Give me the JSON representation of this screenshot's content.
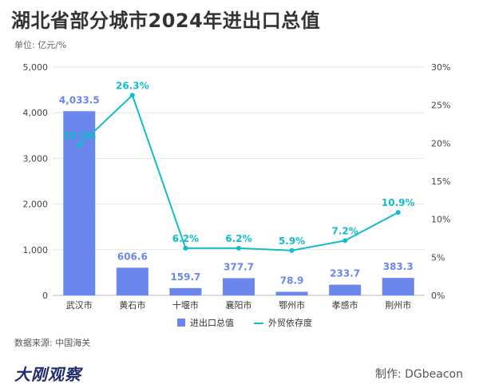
{
  "header": {
    "title": "湖北省部分城市2024年进出口总值",
    "unit": "单位: 亿元/%"
  },
  "footer": {
    "source": "数据来源: 中国海关",
    "brand": "大刚观察",
    "credit": "制作: DGbeacon"
  },
  "colors": {
    "bar": "#6b86ec",
    "line": "#12bccb",
    "axis_text": "#444444",
    "grid": "#e6e6e6"
  },
  "chart_data": {
    "type": "bar",
    "categories": [
      "武汉市",
      "黄石市",
      "十堰市",
      "襄阳市",
      "鄂州市",
      "孝感市",
      "荆州市"
    ],
    "series": [
      {
        "name": "进出口总值",
        "type": "bar",
        "axis": "left",
        "values": [
          4033.5,
          606.6,
          159.7,
          377.7,
          78.9,
          233.7,
          383.3
        ],
        "labels": [
          "4,033.5",
          "606.6",
          "159.7",
          "377.7",
          "78.9",
          "233.7",
          "383.3"
        ]
      },
      {
        "name": "外贸依存度",
        "type": "line",
        "axis": "right",
        "values": [
          19.7,
          26.3,
          6.2,
          6.2,
          5.9,
          7.2,
          10.9
        ],
        "labels": [
          "19.7%",
          "26.3%",
          "6.2%",
          "6.2%",
          "5.9%",
          "7.2%",
          "10.9%"
        ]
      }
    ],
    "y_left": {
      "ylim": [
        0,
        5000
      ],
      "ticks": [
        0,
        1000,
        2000,
        3000,
        4000,
        5000
      ],
      "tick_labels": [
        "0",
        "1,000",
        "2,000",
        "3,000",
        "4,000",
        "5,000"
      ]
    },
    "y_right": {
      "ylim": [
        0,
        30
      ],
      "ticks": [
        0,
        5,
        10,
        15,
        20,
        25,
        30
      ],
      "tick_labels": [
        "0%",
        "5%",
        "10%",
        "15%",
        "20%",
        "25%",
        "30%"
      ]
    },
    "grid": true,
    "legend_position": "bottom"
  }
}
